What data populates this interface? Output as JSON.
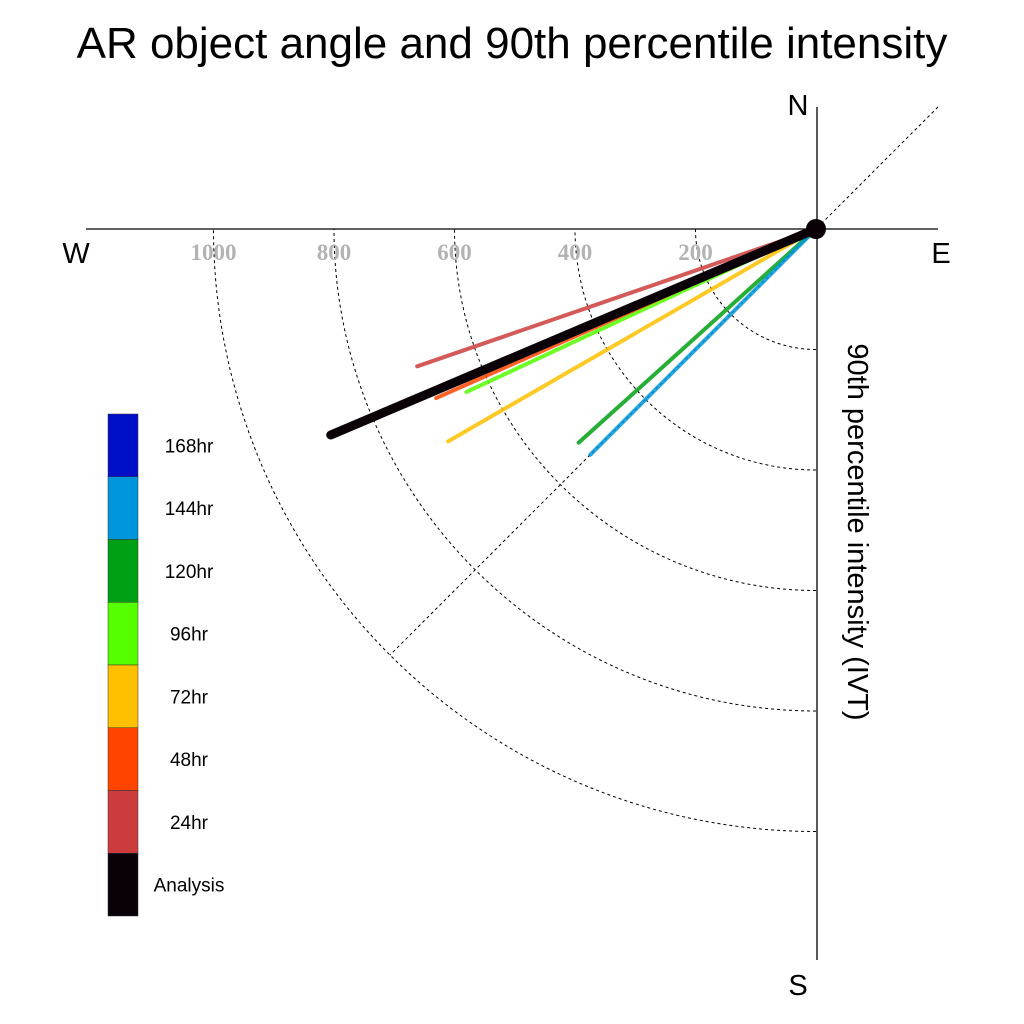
{
  "chart_data": {
    "type": "polar-line",
    "title": "AR object angle and 90th percentile intensity",
    "ylabel": "90th percentile intensity (IVT)",
    "compass": {
      "north": "N",
      "south": "S",
      "east": "E",
      "west": "W"
    },
    "radial_ticks": [
      "200",
      "400",
      "600",
      "800",
      "1000"
    ],
    "radial_tick_values": [
      200,
      400,
      600,
      800,
      1000
    ],
    "rlim": [
      0,
      1000
    ],
    "grid": true,
    "legend_position": "left",
    "series": [
      {
        "name": "168hr",
        "color": "#0010c8",
        "shown": false,
        "bearing_deg": null,
        "ivt": null
      },
      {
        "name": "144hr",
        "color": "#0096dc",
        "shown": true,
        "bearing_deg": 225,
        "ivt": 530
      },
      {
        "name": "120hr",
        "color": "#00a014",
        "shown": true,
        "bearing_deg": 228,
        "ivt": 530
      },
      {
        "name": "96hr",
        "color": "#55ff00",
        "shown": true,
        "bearing_deg": 245,
        "ivt": 640
      },
      {
        "name": "72hr",
        "color": "#ffc000",
        "shown": true,
        "bearing_deg": 240,
        "ivt": 705
      },
      {
        "name": "48hr",
        "color": "#ff4400",
        "shown": true,
        "bearing_deg": 246,
        "ivt": 690
      },
      {
        "name": "24hr",
        "color": "#cc3c3c",
        "shown": true,
        "bearing_deg": 251,
        "ivt": 700
      },
      {
        "name": "Analysis",
        "color": "#0a0008",
        "shown": true,
        "bearing_deg": 247,
        "ivt": 875
      }
    ]
  }
}
